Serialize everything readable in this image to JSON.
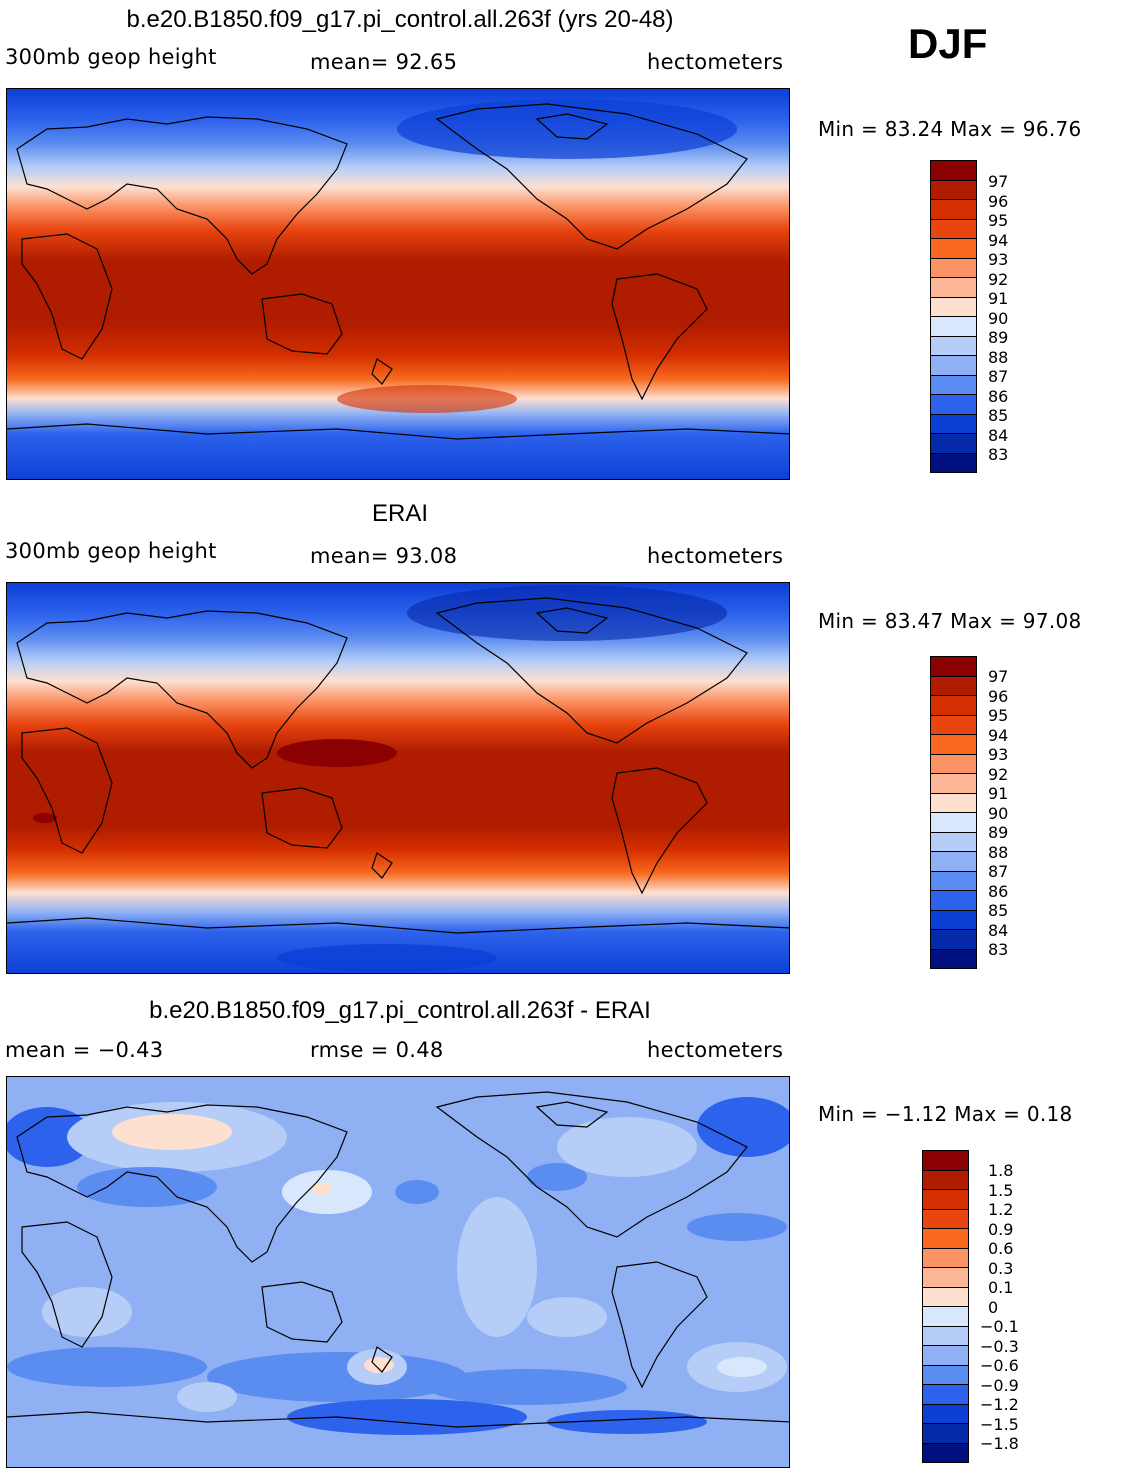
{
  "season": "DJF",
  "panels": [
    {
      "title": "b.e20.B1850.f09_g17.pi_control.all.263f (yrs 20-48)",
      "left_label": "300mb geop height",
      "center_label": "mean=  92.65",
      "right_label": "hectometers",
      "minmax": "Min =  83.24 Max =  96.76",
      "colorbar_labels": [
        "97",
        "96",
        "95",
        "94",
        "93",
        "92",
        "91",
        "90",
        "89",
        "88",
        "87",
        "86",
        "85",
        "84",
        "83"
      ]
    },
    {
      "title": "ERAI",
      "left_label": "300mb geop height",
      "center_label": "mean=  93.08",
      "right_label": "hectometers",
      "minmax": "Min =  83.47 Max =  97.08",
      "colorbar_labels": [
        "97",
        "96",
        "95",
        "94",
        "93",
        "92",
        "91",
        "90",
        "89",
        "88",
        "87",
        "86",
        "85",
        "84",
        "83"
      ]
    },
    {
      "title": "b.e20.B1850.f09_g17.pi_control.all.263f - ERAI",
      "left_label": "mean =  −0.43",
      "center_label": "rmse =   0.48",
      "right_label": "hectometers",
      "minmax": "Min =  −1.12 Max =   0.18",
      "colorbar_labels": [
        "1.8",
        "1.5",
        "1.2",
        "0.9",
        "0.6",
        "0.3",
        "0.1",
        "0",
        "−0.1",
        "−0.3",
        "−0.6",
        "−0.9",
        "−1.2",
        "−1.5",
        "−1.8"
      ]
    }
  ],
  "colors": {
    "palette_top_to_bottom": [
      "#8b0000",
      "#b01c00",
      "#d42f00",
      "#e8450f",
      "#f8691f",
      "#fb9366",
      "#fcb796",
      "#fde0d0",
      "#d8e7fb",
      "#b5cdf7",
      "#8fb1f4",
      "#5b8cf0",
      "#2d62ec",
      "#0c3fd6",
      "#052aaa",
      "#001080"
    ]
  }
}
